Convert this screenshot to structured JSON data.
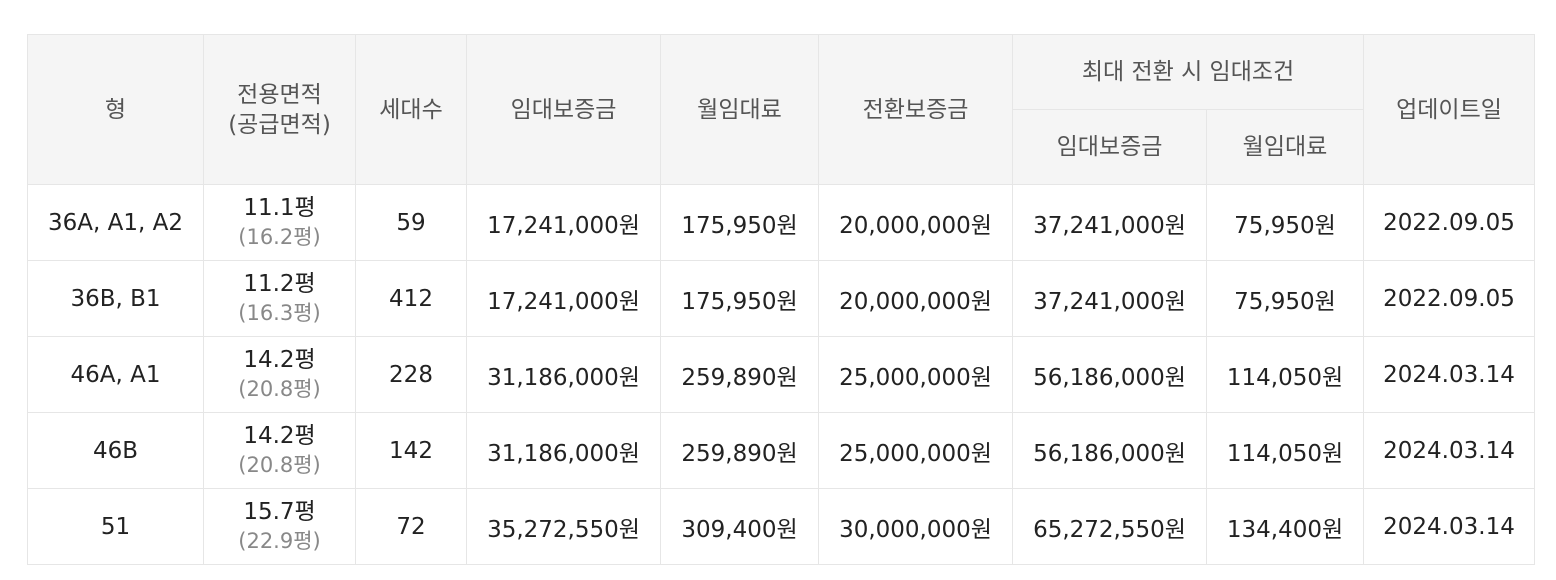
{
  "table": {
    "headers": {
      "type": "형",
      "area_line1": "전용면적",
      "area_line2": "(공급면적)",
      "households": "세대수",
      "deposit": "임대보증금",
      "monthly_rent": "월임대료",
      "conversion_deposit": "전환보증금",
      "max_conversion_group": "최대 전환 시 임대조건",
      "max_deposit": "임대보증금",
      "max_monthly_rent": "월임대료",
      "updated": "업데이트일"
    },
    "rows": [
      {
        "type": "36A, A1, A2",
        "exclusive_area": "11.1평",
        "supply_area": "(16.2평)",
        "households": "59",
        "deposit": "17,241,000원",
        "monthly_rent": "175,950원",
        "conversion_deposit": "20,000,000원",
        "max_deposit": "37,241,000원",
        "max_monthly_rent": "75,950원",
        "updated": "2022.09.05"
      },
      {
        "type": "36B, B1",
        "exclusive_area": "11.2평",
        "supply_area": "(16.3평)",
        "households": "412",
        "deposit": "17,241,000원",
        "monthly_rent": "175,950원",
        "conversion_deposit": "20,000,000원",
        "max_deposit": "37,241,000원",
        "max_monthly_rent": "75,950원",
        "updated": "2022.09.05"
      },
      {
        "type": "46A, A1",
        "exclusive_area": "14.2평",
        "supply_area": "(20.8평)",
        "households": "228",
        "deposit": "31,186,000원",
        "monthly_rent": "259,890원",
        "conversion_deposit": "25,000,000원",
        "max_deposit": "56,186,000원",
        "max_monthly_rent": "114,050원",
        "updated": "2024.03.14"
      },
      {
        "type": "46B",
        "exclusive_area": "14.2평",
        "supply_area": "(20.8평)",
        "households": "142",
        "deposit": "31,186,000원",
        "monthly_rent": "259,890원",
        "conversion_deposit": "25,000,000원",
        "max_deposit": "56,186,000원",
        "max_monthly_rent": "114,050원",
        "updated": "2024.03.14"
      },
      {
        "type": "51",
        "exclusive_area": "15.7평",
        "supply_area": "(22.9평)",
        "households": "72",
        "deposit": "35,272,550원",
        "monthly_rent": "309,400원",
        "conversion_deposit": "30,000,000원",
        "max_deposit": "65,272,550원",
        "max_monthly_rent": "134,400원",
        "updated": "2024.03.14"
      }
    ]
  }
}
